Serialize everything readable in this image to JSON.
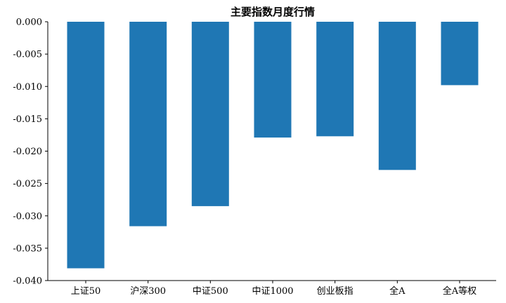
{
  "chart_data": {
    "type": "bar",
    "title": "主要指数月度行情",
    "xlabel": "",
    "ylabel": "",
    "categories": [
      "上证50",
      "沪深300",
      "中证500",
      "中证1000",
      "创业板指",
      "全A",
      "全A等权"
    ],
    "values": [
      -0.0381,
      -0.0316,
      -0.0285,
      -0.0179,
      -0.0177,
      -0.0229,
      -0.0098
    ],
    "ylim": [
      -0.04,
      0.0
    ],
    "yticks": [
      "0.000",
      "-0.005",
      "-0.010",
      "-0.015",
      "-0.020",
      "-0.025",
      "-0.030",
      "-0.035",
      "-0.040"
    ],
    "ytick_values": [
      0.0,
      -0.005,
      -0.01,
      -0.015,
      -0.02,
      -0.025,
      -0.03,
      -0.035,
      -0.04
    ],
    "grid": false,
    "bar_color": "#1f77b4"
  }
}
